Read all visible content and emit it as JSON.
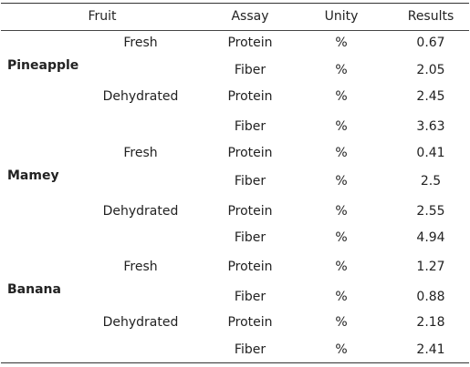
{
  "header": {
    "fruit": "Fruit",
    "assay": "Assay",
    "unity": "Unity",
    "results": "Results"
  },
  "groups": [
    {
      "fruit": "Pineapple",
      "states": [
        {
          "state": "Fresh",
          "rows": [
            {
              "assay": "Protein",
              "unity": "%",
              "result": "0.67"
            },
            {
              "assay": "Fiber",
              "unity": "%",
              "result": "2.05"
            }
          ]
        },
        {
          "state": "Dehydrated",
          "rows": [
            {
              "assay": "Protein",
              "unity": "%",
              "result": "2.45"
            },
            {
              "assay": "Fiber",
              "unity": "%",
              "result": "3.63"
            }
          ]
        }
      ]
    },
    {
      "fruit": "Mamey",
      "states": [
        {
          "state": "Fresh",
          "rows": [
            {
              "assay": "Protein",
              "unity": "%",
              "result": "0.41"
            },
            {
              "assay": "Fiber",
              "unity": "%",
              "result": "2.5"
            }
          ]
        },
        {
          "state": "Dehydrated",
          "rows": [
            {
              "assay": "Protein",
              "unity": "%",
              "result": "2.55"
            },
            {
              "assay": "Fiber",
              "unity": "%",
              "result": "4.94"
            }
          ]
        }
      ]
    },
    {
      "fruit": "Banana",
      "states": [
        {
          "state": "Fresh",
          "rows": [
            {
              "assay": "Protein",
              "unity": "%",
              "result": "1.27"
            },
            {
              "assay": "Fiber",
              "unity": "%",
              "result": "0.88"
            }
          ]
        },
        {
          "state": "Dehydrated",
          "rows": [
            {
              "assay": "Protein",
              "unity": "%",
              "result": "2.18"
            },
            {
              "assay": "Fiber",
              "unity": "%",
              "result": "2.41"
            }
          ]
        }
      ]
    }
  ]
}
